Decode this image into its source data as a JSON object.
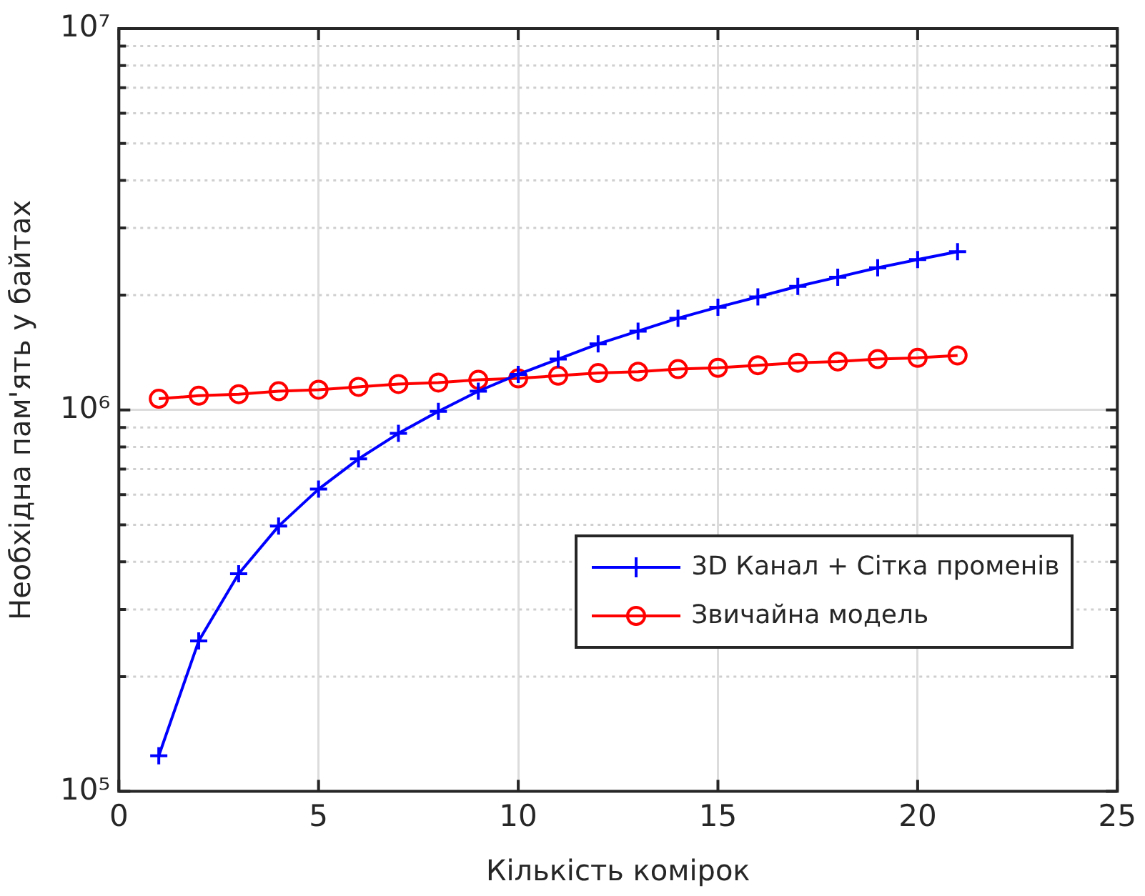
{
  "chart_data": {
    "type": "line",
    "xlabel": "Кількість комірок",
    "ylabel": "Необхідна пам'ять у байтах",
    "x": [
      1,
      2,
      3,
      4,
      5,
      6,
      7,
      8,
      9,
      10,
      11,
      12,
      13,
      14,
      15,
      16,
      17,
      18,
      19,
      20,
      21
    ],
    "series": [
      {
        "name": "3D Канал + Сітка променів",
        "color": "#0000ff",
        "marker": "cross",
        "values": [
          124000,
          248000,
          372000,
          496000,
          620000,
          744000,
          868000,
          992000,
          1120000,
          1240000,
          1360000,
          1490000,
          1610000,
          1740000,
          1860000,
          1980000,
          2110000,
          2230000,
          2360000,
          2480000,
          2600000
        ]
      },
      {
        "name": "Звичайна модель",
        "color": "#ff0000",
        "marker": "circle",
        "values": [
          1070000,
          1090000,
          1100000,
          1120000,
          1130000,
          1150000,
          1170000,
          1180000,
          1200000,
          1210000,
          1230000,
          1250000,
          1260000,
          1280000,
          1290000,
          1310000,
          1330000,
          1340000,
          1360000,
          1370000,
          1390000
        ]
      }
    ],
    "log": "y",
    "grid": true,
    "legend": "bottom right",
    "line_style": "solid",
    "xlim": [
      0,
      25
    ],
    "xticks": [
      0,
      5,
      10,
      15,
      20,
      25
    ],
    "ylim": [
      100000,
      10000000
    ],
    "yticks": [
      {
        "value": 100000,
        "label": "10⁵"
      },
      {
        "value": 200000,
        "label": null
      },
      {
        "value": 300000,
        "label": null
      },
      {
        "value": 400000,
        "label": null
      },
      {
        "value": 500000,
        "label": null
      },
      {
        "value": 600000,
        "label": null
      },
      {
        "value": 700000,
        "label": null
      },
      {
        "value": 800000,
        "label": null
      },
      {
        "value": 900000,
        "label": null
      },
      {
        "value": 1000000,
        "label": "10⁶"
      },
      {
        "value": 2000000,
        "label": null
      },
      {
        "value": 3000000,
        "label": null
      },
      {
        "value": 4000000,
        "label": null
      },
      {
        "value": 5000000,
        "label": null
      },
      {
        "value": 6000000,
        "label": null
      },
      {
        "value": 7000000,
        "label": null
      },
      {
        "value": 8000000,
        "label": null
      },
      {
        "value": 9000000,
        "label": null
      },
      {
        "value": 10000000,
        "label": "10⁷"
      }
    ]
  }
}
